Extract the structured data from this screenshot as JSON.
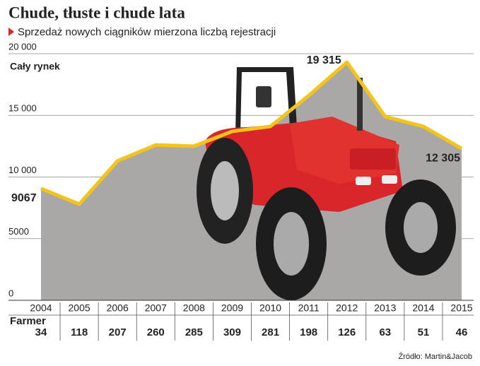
{
  "chart_data": {
    "type": "area",
    "title": "Chude, tłuste i chude lata",
    "subtitle": "Sprzedaż nowych ciągników mierzona liczbą rejestracji",
    "categories": [
      "2004",
      "2005",
      "2006",
      "2007",
      "2008",
      "2009",
      "2010",
      "2011",
      "2012",
      "2013",
      "2014",
      "2015"
    ],
    "series": [
      {
        "name": "Cały rynek",
        "color": "#f5c41a",
        "fill": "#a9a8a6",
        "values": [
          9067,
          7800,
          11300,
          12600,
          12500,
          13700,
          14100,
          16600,
          19315,
          14900,
          14100,
          12305
        ],
        "value_labels": [
          "9067",
          null,
          null,
          null,
          null,
          null,
          null,
          null,
          "19 315",
          null,
          null,
          "12 305"
        ]
      }
    ],
    "ylim": [
      0,
      20000
    ],
    "yticks": [
      0,
      5000,
      {
        "value": 10000,
        "label": "10 000"
      },
      {
        "value": 15000,
        "label": "15 000"
      },
      {
        "value": 20000,
        "label": "20 000"
      }
    ],
    "grid": true,
    "farmer": {
      "name": "Farmer",
      "color": "#d7262e",
      "values": [
        34,
        118,
        207,
        260,
        285,
        309,
        281,
        198,
        126,
        63,
        51,
        46
      ]
    },
    "source": "Źródło: Martin&Jacob"
  }
}
